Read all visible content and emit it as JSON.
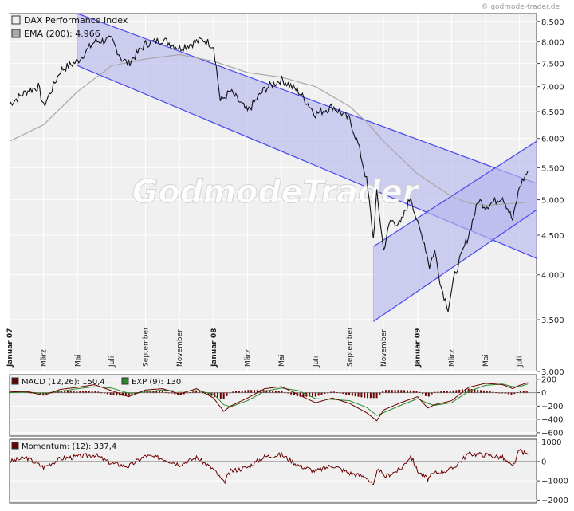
{
  "copyright": "© godmode-trader.de",
  "watermark": "GodmodeTrader",
  "colors": {
    "frame": "#444444",
    "plot_bg": "#f0f0f0",
    "grid": "#ffffff",
    "channel_fill": "#b8b8ee",
    "channel_line": "#4848ee",
    "price": "#101018",
    "ema": "#a8a8a8",
    "macd": "#6a0000",
    "signal": "#2a8a2a",
    "momentum": "#6a0000"
  },
  "chart_data": [
    {
      "type": "candlestick",
      "legend": [
        {
          "label": "DAX Performance Index",
          "swatch": "#f0f0f0"
        },
        {
          "label": "EMA (200): 4.966",
          "swatch": "#a8a8a8"
        }
      ],
      "y_scale": "log",
      "ylim": [
        3000,
        8700
      ],
      "yticks": [
        "8.500",
        "8.000",
        "7.500",
        "7.000",
        "6.500",
        "6.000",
        "5.500",
        "5.000",
        "4.500",
        "4.000",
        "3.500",
        "3.000"
      ],
      "ytick_values": [
        8500,
        8000,
        7500,
        7000,
        6500,
        6000,
        5500,
        5000,
        4500,
        4000,
        3500,
        3000
      ],
      "xlim": [
        0,
        31
      ],
      "x_labels": [
        {
          "label": "Januar 07",
          "at": 0,
          "bold": true
        },
        {
          "label": "März",
          "at": 2,
          "bold": false
        },
        {
          "label": "Mai",
          "at": 4,
          "bold": false
        },
        {
          "label": "Juli",
          "at": 6,
          "bold": false
        },
        {
          "label": "September",
          "at": 8,
          "bold": false
        },
        {
          "label": "November",
          "at": 10,
          "bold": false
        },
        {
          "label": "Januar 08",
          "at": 12,
          "bold": true
        },
        {
          "label": "März",
          "at": 14,
          "bold": false
        },
        {
          "label": "Mai",
          "at": 16,
          "bold": false
        },
        {
          "label": "Juli",
          "at": 18,
          "bold": false
        },
        {
          "label": "September",
          "at": 20,
          "bold": false
        },
        {
          "label": "November",
          "at": 22,
          "bold": false
        },
        {
          "label": "Januar 09",
          "at": 24,
          "bold": true
        },
        {
          "label": "März",
          "at": 26,
          "bold": false
        },
        {
          "label": "Mai",
          "at": 28,
          "bold": false
        },
        {
          "label": "Juli",
          "at": 30,
          "bold": false
        }
      ],
      "price_path": [
        [
          0,
          6650
        ],
        [
          1,
          6900
        ],
        [
          1.7,
          7000
        ],
        [
          2,
          6600
        ],
        [
          2.5,
          6950
        ],
        [
          3,
          7350
        ],
        [
          4,
          7550
        ],
        [
          5,
          8000
        ],
        [
          6,
          8050
        ],
        [
          6.6,
          7600
        ],
        [
          7,
          7500
        ],
        [
          8,
          7950
        ],
        [
          9,
          8050
        ],
        [
          10,
          7850
        ],
        [
          11,
          8000
        ],
        [
          11.4,
          8050
        ],
        [
          12,
          7900
        ],
        [
          12.4,
          6700
        ],
        [
          13,
          6900
        ],
        [
          14,
          6500
        ],
        [
          15,
          6950
        ],
        [
          16,
          7150
        ],
        [
          17,
          6900
        ],
        [
          18,
          6450
        ],
        [
          19,
          6600
        ],
        [
          20,
          6350
        ],
        [
          20.5,
          5900
        ],
        [
          21,
          5300
        ],
        [
          21.4,
          4450
        ],
        [
          21.6,
          5100
        ],
        [
          22,
          4300
        ],
        [
          22.4,
          4700
        ],
        [
          23,
          4650
        ],
        [
          23.6,
          5050
        ],
        [
          24,
          4650
        ],
        [
          24.4,
          4400
        ],
        [
          24.7,
          4100
        ],
        [
          25,
          4300
        ],
        [
          25.4,
          3850
        ],
        [
          25.8,
          3620
        ],
        [
          26.2,
          4000
        ],
        [
          27,
          4500
        ],
        [
          27.6,
          5000
        ],
        [
          28,
          4900
        ],
        [
          29,
          5050
        ],
        [
          29.6,
          4700
        ],
        [
          30,
          5200
        ],
        [
          30.5,
          5450
        ]
      ],
      "ema_path": [
        [
          0,
          5950
        ],
        [
          2,
          6250
        ],
        [
          4,
          6900
        ],
        [
          6,
          7450
        ],
        [
          8,
          7600
        ],
        [
          10,
          7700
        ],
        [
          12,
          7550
        ],
        [
          14,
          7300
        ],
        [
          16,
          7200
        ],
        [
          18,
          7000
        ],
        [
          20,
          6600
        ],
        [
          21,
          6300
        ],
        [
          22,
          5950
        ],
        [
          24,
          5400
        ],
        [
          26,
          5050
        ],
        [
          27,
          4950
        ],
        [
          28,
          4920
        ],
        [
          30,
          4950
        ],
        [
          30.5,
          4966
        ]
      ],
      "channels": [
        {
          "name": "down-channel",
          "upper": [
            [
              4,
              8700
            ],
            [
              31,
              5250
            ]
          ],
          "lower": [
            [
              4,
              7450
            ],
            [
              31,
              4200
            ]
          ]
        },
        {
          "name": "up-channel",
          "upper": [
            [
              21.4,
              4350
            ],
            [
              31,
              5950
            ]
          ],
          "lower": [
            [
              21.4,
              3480
            ],
            [
              31,
              4850
            ]
          ]
        }
      ]
    },
    {
      "type": "line",
      "legend": [
        {
          "label": "MACD (12,26): 150,4",
          "swatch": "#6a0000"
        },
        {
          "label": "EXP (9): 130",
          "swatch": "#2a8a2a"
        }
      ],
      "ylim": [
        -650,
        270
      ],
      "yticks": [
        "200",
        "0",
        "−200",
        "−400",
        "−600"
      ],
      "ytick_values": [
        200,
        0,
        -200,
        -400,
        -600
      ],
      "macd": [
        [
          0,
          10
        ],
        [
          1,
          20
        ],
        [
          2,
          -40
        ],
        [
          3,
          50
        ],
        [
          4,
          80
        ],
        [
          5,
          120
        ],
        [
          6,
          30
        ],
        [
          7,
          -60
        ],
        [
          8,
          40
        ],
        [
          9,
          60
        ],
        [
          10,
          -20
        ],
        [
          11,
          60
        ],
        [
          12,
          -80
        ],
        [
          12.6,
          -280
        ],
        [
          13,
          -200
        ],
        [
          14,
          -80
        ],
        [
          15,
          60
        ],
        [
          16,
          90
        ],
        [
          17,
          -30
        ],
        [
          18,
          -150
        ],
        [
          19,
          -80
        ],
        [
          20,
          -160
        ],
        [
          21,
          -300
        ],
        [
          21.6,
          -420
        ],
        [
          22,
          -260
        ],
        [
          23,
          -150
        ],
        [
          24,
          -60
        ],
        [
          24.6,
          -230
        ],
        [
          25,
          -180
        ],
        [
          26,
          -120
        ],
        [
          27,
          80
        ],
        [
          28,
          140
        ],
        [
          29,
          120
        ],
        [
          29.6,
          60
        ],
        [
          30,
          110
        ],
        [
          30.5,
          150.4
        ]
      ],
      "signal": [
        [
          0,
          0
        ],
        [
          1,
          10
        ],
        [
          2,
          -10
        ],
        [
          3,
          20
        ],
        [
          4,
          60
        ],
        [
          5,
          90
        ],
        [
          6,
          70
        ],
        [
          7,
          -10
        ],
        [
          8,
          10
        ],
        [
          9,
          40
        ],
        [
          10,
          20
        ],
        [
          11,
          30
        ],
        [
          12,
          -20
        ],
        [
          12.6,
          -180
        ],
        [
          13,
          -210
        ],
        [
          14,
          -120
        ],
        [
          15,
          20
        ],
        [
          16,
          70
        ],
        [
          17,
          30
        ],
        [
          18,
          -90
        ],
        [
          19,
          -100
        ],
        [
          20,
          -120
        ],
        [
          21,
          -220
        ],
        [
          21.6,
          -340
        ],
        [
          22,
          -300
        ],
        [
          23,
          -190
        ],
        [
          24,
          -90
        ],
        [
          24.6,
          -160
        ],
        [
          25,
          -190
        ],
        [
          26,
          -150
        ],
        [
          27,
          20
        ],
        [
          28,
          110
        ],
        [
          29,
          130
        ],
        [
          29.6,
          90
        ],
        [
          30,
          90
        ],
        [
          30.5,
          130
        ]
      ]
    },
    {
      "type": "line",
      "legend": [
        {
          "label": "Momentum: (12): 337,4",
          "swatch": "#6a0000"
        }
      ],
      "ylim": [
        -2150,
        1150
      ],
      "yticks": [
        "1000",
        "0",
        "−1000",
        "−2000"
      ],
      "ytick_values": [
        1000,
        0,
        -1000,
        -2000
      ],
      "momentum": [
        [
          0,
          0
        ],
        [
          1,
          200
        ],
        [
          2,
          -300
        ],
        [
          3,
          150
        ],
        [
          4,
          250
        ],
        [
          5,
          350
        ],
        [
          6,
          -100
        ],
        [
          7,
          -250
        ],
        [
          8,
          300
        ],
        [
          9,
          150
        ],
        [
          10,
          -150
        ],
        [
          11,
          200
        ],
        [
          12,
          -400
        ],
        [
          12.6,
          -1100
        ],
        [
          13,
          -500
        ],
        [
          14,
          -300
        ],
        [
          15,
          250
        ],
        [
          16,
          350
        ],
        [
          17,
          -200
        ],
        [
          18,
          -500
        ],
        [
          19,
          -200
        ],
        [
          20,
          -600
        ],
        [
          21,
          -800
        ],
        [
          21.4,
          -1300
        ],
        [
          21.7,
          -300
        ],
        [
          22,
          -800
        ],
        [
          23,
          -400
        ],
        [
          23.6,
          300
        ],
        [
          24,
          -500
        ],
        [
          24.6,
          -900
        ],
        [
          25,
          -600
        ],
        [
          26,
          -400
        ],
        [
          27,
          400
        ],
        [
          28,
          350
        ],
        [
          29,
          200
        ],
        [
          29.6,
          -300
        ],
        [
          30,
          600
        ],
        [
          30.5,
          337.4
        ]
      ]
    }
  ]
}
